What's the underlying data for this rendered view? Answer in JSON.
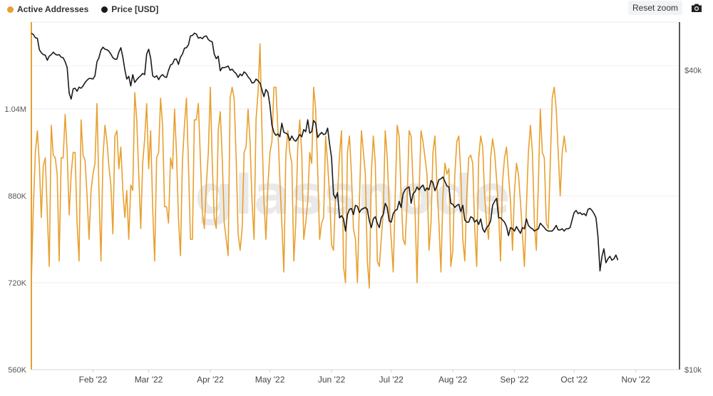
{
  "header": {
    "reset_label": "Reset zoom",
    "camera_icon": "camera-icon"
  },
  "watermark": "glassnode",
  "colors": {
    "active": "#E8A030",
    "price": "#1a1a1a",
    "grid": "#ececec"
  },
  "chart_data": {
    "type": "line",
    "series": [
      {
        "name": "Active Addresses",
        "axis": "left",
        "x_start": "2022-01-01",
        "x_step_days": 1,
        "values": [
          722000,
          860000,
          960000,
          1000000,
          940000,
          840000,
          935000,
          950000,
          850000,
          750000,
          1010000,
          955000,
          950000,
          920000,
          760000,
          950000,
          950000,
          1030000,
          960000,
          845000,
          920000,
          960000,
          960000,
          830000,
          760000,
          1020000,
          955000,
          945000,
          880000,
          800000,
          890000,
          920000,
          940000,
          1050000,
          890000,
          760000,
          950000,
          1010000,
          980000,
          935000,
          900000,
          810000,
          990000,
          1000000,
          930000,
          970000,
          890000,
          840000,
          890000,
          800000,
          900000,
          890000,
          1070000,
          1020000,
          920000,
          820000,
          940000,
          985000,
          1050000,
          930000,
          1000000,
          860000,
          760000,
          950000,
          960000,
          1060000,
          1010000,
          860000,
          860000,
          830000,
          950000,
          930000,
          1040000,
          960000,
          840000,
          770000,
          945000,
          1010000,
          1060000,
          940000,
          800000,
          800000,
          1020000,
          1020000,
          1050000,
          950000,
          850000,
          820000,
          900000,
          960000,
          1080000,
          940000,
          840000,
          820000,
          1000000,
          1035000,
          950000,
          830000,
          800000,
          770000,
          1060000,
          1080000,
          1060000,
          950000,
          810000,
          780000,
          820000,
          960000,
          970000,
          1040000,
          980000,
          870000,
          800000,
          1020000,
          1070000,
          1160000,
          1000000,
          870000,
          800000,
          900000,
          960000,
          980000,
          1080000,
          1080000,
          1000000,
          910000,
          830000,
          740000,
          955000,
          1000000,
          960000,
          940000,
          760000,
          830000,
          970000,
          1020000,
          960000,
          800000,
          830000,
          870000,
          960000,
          940000,
          1080000,
          1040000,
          930000,
          800000,
          830000,
          840000,
          990000,
          940000,
          880000,
          790000,
          780000,
          880000,
          880000,
          955000,
          1000000,
          750000,
          720000,
          960000,
          990000,
          920000,
          820000,
          800000,
          720000,
          870000,
          1000000,
          960000,
          920000,
          760000,
          710000,
          920000,
          990000,
          940000,
          760000,
          750000,
          800000,
          850000,
          1000000,
          950000,
          860000,
          800000,
          740000,
          880000,
          1010000,
          990000,
          880000,
          800000,
          790000,
          870000,
          1000000,
          990000,
          900000,
          850000,
          720000,
          880000,
          1000000,
          980000,
          950000,
          920000,
          780000,
          830000,
          960000,
          990000,
          900000,
          830000,
          740000,
          880000,
          940000,
          920000,
          930000,
          750000,
          780000,
          920000,
          980000,
          990000,
          920000,
          800000,
          760000,
          880000,
          950000,
          955000,
          940000,
          820000,
          750000,
          950000,
          990000,
          970000,
          880000,
          830000,
          800000,
          950000,
          985000,
          960000,
          910000,
          850000,
          760000,
          905000,
          950000,
          970000,
          920000,
          870000,
          780000,
          890000,
          940000,
          920000,
          870000,
          810000,
          750000,
          860000,
          960000,
          1010000,
          960000,
          830000,
          780000,
          900000,
          1040000,
          960000,
          950000,
          830000,
          820000,
          940000,
          1060000,
          1080000,
          1040000,
          960000,
          880000,
          960000,
          990000,
          960000
        ],
        "color": "#E8A030"
      },
      {
        "name": "Price [USD]",
        "axis": "right",
        "x_start": "2022-01-01",
        "x_step_days": 1,
        "values": [
          47500,
          47200,
          46500,
          46400,
          44000,
          43400,
          43000,
          42900,
          41900,
          42700,
          43000,
          43500,
          43100,
          42900,
          43000,
          42500,
          42400,
          41600,
          40500,
          36000,
          35000,
          36700,
          36800,
          36300,
          37000,
          36800,
          37200,
          37800,
          38200,
          38500,
          38500,
          38400,
          39000,
          41600,
          42400,
          43900,
          44500,
          44100,
          44000,
          43700,
          43100,
          42400,
          42100,
          42100,
          43500,
          44400,
          42500,
          40100,
          38400,
          38900,
          37200,
          39200,
          37800,
          38300,
          38700,
          39000,
          39400,
          39200,
          43100,
          44100,
          42300,
          39000,
          38700,
          39000,
          38300,
          38900,
          39200,
          38800,
          38700,
          40000,
          41000,
          41200,
          42100,
          42100,
          41100,
          42500,
          43100,
          44300,
          44400,
          45000,
          46900,
          47000,
          47500,
          47300,
          46400,
          46600,
          46300,
          46800,
          46900,
          46100,
          45800,
          45600,
          43100,
          42200,
          42700,
          39900,
          40500,
          40500,
          40600,
          40800,
          40000,
          40200,
          39700,
          39400,
          38700,
          39300,
          39000,
          39700,
          39400,
          38800,
          38400,
          37700,
          37800,
          38400,
          38100,
          37700,
          36500,
          35400,
          36600,
          36100,
          34000,
          31000,
          30000,
          29600,
          29800,
          29400,
          31300,
          30000,
          29900,
          29700,
          28900,
          29500,
          29000,
          28800,
          29200,
          29700,
          29400,
          30400,
          30100,
          31800,
          29900,
          30100,
          31700,
          31300,
          29300,
          29700,
          30000,
          29700,
          29800,
          30600,
          28400,
          26700,
          22500,
          22100,
          22700,
          20200,
          20400,
          20100,
          19000,
          20500,
          21000,
          21100,
          20500,
          21400,
          21300,
          20700,
          21000,
          21100,
          21200,
          21000,
          19900,
          19300,
          20100,
          20300,
          19700,
          19300,
          20200,
          20500,
          21600,
          21200,
          19900,
          19800,
          20600,
          20900,
          21000,
          21800,
          21200,
          22600,
          23000,
          23200,
          23300,
          21600,
          22600,
          22800,
          23300,
          23000,
          23300,
          23500,
          22900,
          23200,
          23000,
          24000,
          23800,
          22900,
          23400,
          24100,
          24200,
          24400,
          23900,
          23400,
          23300,
          21600,
          21500,
          21200,
          21400,
          21500,
          20800,
          21400,
          20000,
          19800,
          19800,
          20300,
          20200,
          19800,
          20000,
          19600,
          20100,
          19200,
          18900,
          19300,
          19500,
          19900,
          21400,
          21800,
          22100,
          20200,
          20200,
          20000,
          19800,
          19400,
          18600,
          19300,
          19200,
          19000,
          19400,
          19100,
          18800,
          19300,
          19200,
          20100,
          19500,
          19300,
          19200,
          19000,
          19100,
          19200,
          19700,
          19500,
          19300,
          19100,
          19000,
          19000,
          19000,
          19200,
          19500,
          19100,
          19100,
          19200,
          19000,
          19200,
          19200,
          19300,
          20000,
          20700,
          20900,
          20600,
          20700,
          20500,
          20600,
          20400,
          21000,
          21100,
          20900,
          20600,
          20200,
          18500,
          15800,
          16900,
          17500,
          16400,
          16700,
          16900,
          16600,
          16700,
          17000,
          16600
        ],
        "color": "#1a1a1a"
      }
    ],
    "y_left": {
      "min": 560000,
      "max": 1200000,
      "ticks": [
        560000,
        720000,
        880000,
        1040000
      ],
      "tick_labels": [
        "560K",
        "720K",
        "880K",
        "1.04M"
      ]
    },
    "y_right": {
      "min": 10000,
      "max": 50000,
      "ticks": [
        10000,
        40000
      ],
      "tick_labels": [
        "$10k",
        "$40k"
      ],
      "scale": "log"
    },
    "x_ticks": [
      {
        "date": "2022-02-01",
        "label": "Feb '22"
      },
      {
        "date": "2022-03-01",
        "label": "Mar '22"
      },
      {
        "date": "2022-04-01",
        "label": "Apr '22"
      },
      {
        "date": "2022-05-01",
        "label": "May '22"
      },
      {
        "date": "2022-06-01",
        "label": "Jun '22"
      },
      {
        "date": "2022-07-01",
        "label": "Jul '22"
      },
      {
        "date": "2022-08-01",
        "label": "Aug '22"
      },
      {
        "date": "2022-09-01",
        "label": "Sep '22"
      },
      {
        "date": "2022-10-01",
        "label": "Oct '22"
      },
      {
        "date": "2022-11-01",
        "label": "Nov '22"
      }
    ],
    "x_range": [
      "2022-01-01",
      "2022-11-23"
    ],
    "grid": true,
    "legend_position": "top-left"
  }
}
